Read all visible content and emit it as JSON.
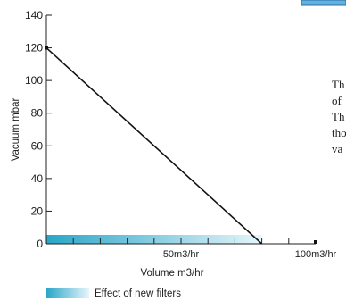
{
  "chart_data": {
    "type": "line",
    "ylabel": "Vacuum mbar",
    "xlabel": "Volume m3/hr",
    "x_unit": "m3/hr",
    "ylim": [
      0,
      140
    ],
    "yticks": [
      "0",
      "20",
      "40",
      "60",
      "80",
      "100",
      "120",
      "140"
    ],
    "xlim": [
      0,
      100
    ],
    "xtick_labels": [
      {
        "x": 50,
        "label": "50m3/hr"
      },
      {
        "x": 100,
        "label": "100m3/hr"
      }
    ],
    "series": [
      {
        "points": [
          {
            "x": 0,
            "y": 120
          },
          {
            "x": 80,
            "y": 0
          }
        ],
        "color": "#111111"
      }
    ],
    "band": {
      "from_x": 0,
      "to_x": 80,
      "color_start": "#2aa6c8",
      "color_end": "#e6f5fb"
    },
    "legend": {
      "label": "Effect of new filters",
      "position": "bottom-left"
    }
  },
  "side_text_fragments": [
    "Th",
    "of",
    "Th",
    "tho",
    "va"
  ]
}
